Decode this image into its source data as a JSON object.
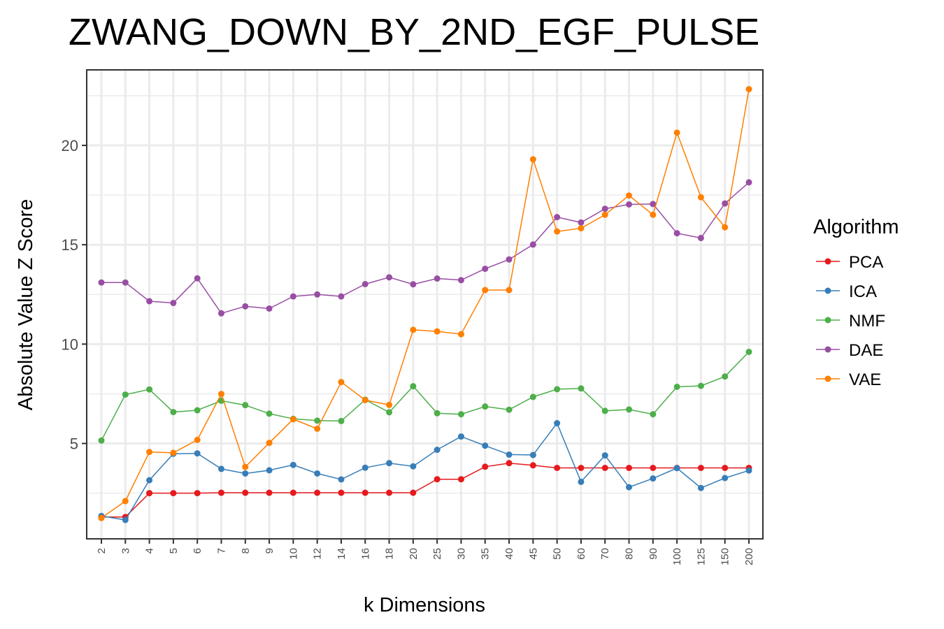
{
  "chart_data": {
    "type": "line",
    "title": "ZWANG_DOWN_BY_2ND_EGF_PULSE",
    "xlabel": "k Dimensions",
    "ylabel": "Absolute Value Z Score",
    "categories": [
      "2",
      "3",
      "4",
      "5",
      "6",
      "7",
      "8",
      "9",
      "10",
      "12",
      "14",
      "16",
      "18",
      "20",
      "25",
      "30",
      "35",
      "40",
      "45",
      "50",
      "60",
      "70",
      "80",
      "90",
      "100",
      "125",
      "150",
      "200"
    ],
    "y_ticks": [
      5,
      10,
      15,
      20
    ],
    "ylim": [
      0.2,
      23.8
    ],
    "grid": true,
    "legend": {
      "title": "Algorithm",
      "placement": "right"
    },
    "series": [
      {
        "name": "PCA",
        "color": "#e41a1c",
        "values": [
          1.3,
          1.3,
          2.5,
          2.5,
          2.5,
          2.52,
          2.52,
          2.52,
          2.52,
          2.52,
          2.52,
          2.52,
          2.52,
          2.52,
          3.2,
          3.2,
          3.83,
          4.01,
          3.9,
          3.77,
          3.77,
          3.77,
          3.77,
          3.77,
          3.77,
          3.77,
          3.77,
          3.77
        ]
      },
      {
        "name": "ICA",
        "color": "#377eb8",
        "values": [
          1.35,
          1.15,
          3.15,
          4.48,
          4.5,
          3.72,
          3.49,
          3.65,
          3.92,
          3.49,
          3.19,
          3.78,
          4.01,
          3.85,
          4.68,
          5.35,
          4.89,
          4.44,
          4.42,
          6.02,
          3.07,
          4.4,
          2.8,
          3.24,
          3.76,
          2.76,
          3.26,
          3.64
        ]
      },
      {
        "name": "NMF",
        "color": "#4daf4a",
        "values": [
          5.15,
          7.46,
          7.72,
          6.58,
          6.67,
          7.15,
          6.93,
          6.5,
          6.24,
          6.15,
          6.13,
          7.2,
          6.57,
          7.88,
          6.52,
          6.47,
          6.86,
          6.7,
          7.34,
          7.73,
          7.77,
          6.64,
          6.71,
          6.47,
          7.85,
          7.9,
          8.37,
          9.61
        ]
      },
      {
        "name": "DAE",
        "color": "#984ea3",
        "values": [
          13.1,
          13.1,
          12.16,
          12.07,
          13.31,
          11.55,
          11.9,
          11.79,
          12.4,
          12.5,
          12.4,
          13.02,
          13.36,
          13.01,
          13.3,
          13.22,
          13.79,
          14.26,
          15.01,
          16.39,
          16.12,
          16.81,
          17.03,
          17.05,
          15.58,
          15.34,
          17.08,
          18.14
        ]
      },
      {
        "name": "VAE",
        "color": "#ff7f00",
        "values": [
          1.25,
          2.1,
          4.57,
          4.53,
          5.18,
          7.49,
          3.82,
          5.03,
          6.22,
          5.74,
          8.09,
          7.18,
          6.94,
          10.72,
          10.64,
          10.5,
          12.72,
          12.72,
          19.3,
          15.67,
          15.83,
          16.51,
          17.48,
          16.51,
          20.64,
          17.39,
          15.88,
          22.83
        ]
      }
    ]
  }
}
